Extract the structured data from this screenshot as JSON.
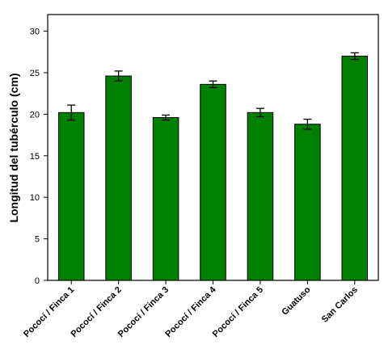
{
  "chart_data": {
    "type": "bar",
    "title": "",
    "xlabel": "",
    "ylabel": "Longitud del tubérculo (cm)",
    "categories": [
      "Pococí / Finca 1",
      "Pococí / Finca 2",
      "Pococí / Finca 3",
      "Pococí / Finca 4",
      "Pococí / Finca 5",
      "Guatuso",
      "San Carlos"
    ],
    "values": [
      20.2,
      24.6,
      19.6,
      23.6,
      20.2,
      18.8,
      27.0
    ],
    "errors": [
      0.9,
      0.6,
      0.3,
      0.4,
      0.5,
      0.6,
      0.4
    ],
    "ylim": [
      0,
      32
    ],
    "yticks": [
      0,
      5,
      10,
      15,
      20,
      25,
      30
    ],
    "grid": false,
    "bar_color": "#008000",
    "bar_edge_color": "#000000"
  }
}
